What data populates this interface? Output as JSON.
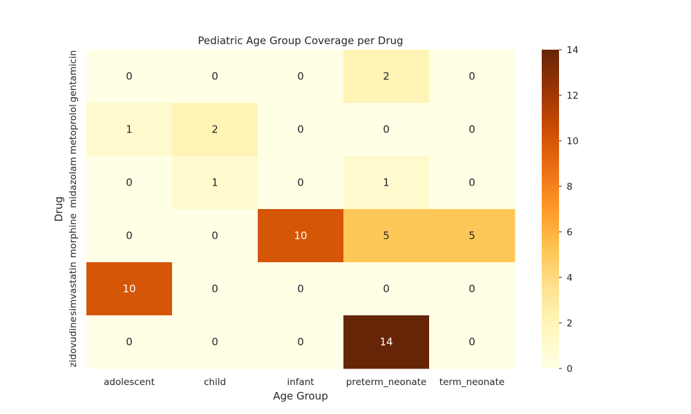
{
  "chart_data": {
    "type": "heatmap",
    "title": "Pediatric Age Group Coverage per Drug",
    "xlabel": "Age Group",
    "ylabel": "Drug",
    "x_categories": [
      "adolescent",
      "child",
      "infant",
      "preterm_neonate",
      "term_neonate"
    ],
    "y_categories": [
      "gentamicin",
      "metoprolol",
      "midazolam",
      "morphine",
      "simvastatin",
      "zidovudine"
    ],
    "values": [
      [
        0,
        0,
        0,
        2,
        0
      ],
      [
        1,
        2,
        0,
        0,
        0
      ],
      [
        0,
        1,
        0,
        1,
        0
      ],
      [
        0,
        0,
        10,
        5,
        5
      ],
      [
        10,
        0,
        0,
        0,
        0
      ],
      [
        0,
        0,
        0,
        14,
        0
      ]
    ],
    "colorbar": {
      "min": 0,
      "max": 14,
      "ticks": [
        0,
        2,
        4,
        6,
        8,
        10,
        12,
        14
      ]
    },
    "colormap": "YlOrBr",
    "colormap_stops": [
      "#ffffe5",
      "#fff7bc",
      "#fee391",
      "#fec44f",
      "#fe9929",
      "#ec7014",
      "#cc4c02",
      "#993404",
      "#662506"
    ]
  }
}
